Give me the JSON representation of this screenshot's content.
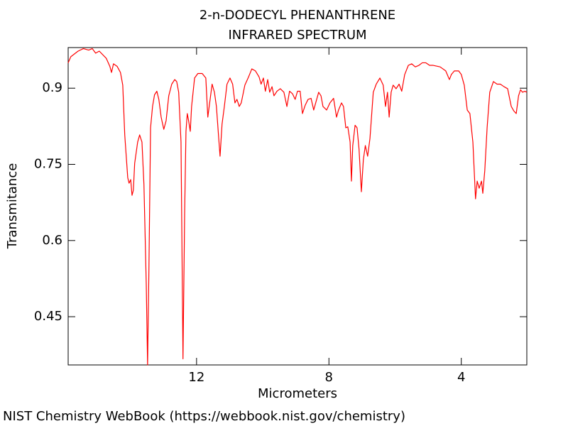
{
  "chart_data": {
    "type": "line",
    "title": "2-n-DODECYL PHENANTHRENE",
    "subtitle": "INFRARED SPECTRUM",
    "x_label": "Micrometers",
    "y_label": "Transmitance",
    "source": "NIST Chemistry WebBook (https://webbook.nist.gov/chemistry)",
    "xlim": [
      15.88,
      2.02
    ],
    "ylim": [
      0.355,
      0.98
    ],
    "xticks": [
      12,
      8,
      4
    ],
    "yticks": [
      0.9,
      0.75,
      0.6,
      0.45
    ],
    "grid": false,
    "series": [
      {
        "name": "2-n-Dodecyl phenanthrene",
        "color": "#ff0000",
        "x": [
          15.88,
          15.8,
          15.58,
          15.42,
          15.26,
          15.15,
          15.05,
          14.94,
          14.73,
          14.62,
          14.57,
          14.51,
          14.4,
          14.3,
          14.23,
          14.17,
          14.08,
          14.04,
          13.99,
          13.95,
          13.91,
          13.87,
          13.78,
          13.72,
          13.65,
          13.59,
          13.52,
          13.48,
          13.44,
          13.39,
          13.33,
          13.27,
          13.2,
          13.14,
          13.07,
          12.99,
          12.92,
          12.84,
          12.75,
          12.66,
          12.6,
          12.54,
          12.47,
          12.41,
          12.36,
          12.32,
          12.28,
          12.24,
          12.19,
          12.15,
          12.06,
          11.96,
          11.83,
          11.72,
          11.66,
          11.59,
          11.53,
          11.46,
          11.4,
          11.33,
          11.29,
          11.23,
          11.16,
          11.08,
          10.99,
          10.91,
          10.84,
          10.78,
          10.71,
          10.65,
          10.54,
          10.43,
          10.33,
          10.22,
          10.11,
          10.05,
          9.98,
          9.92,
          9.85,
          9.79,
          9.72,
          9.66,
          9.57,
          9.47,
          9.36,
          9.27,
          9.19,
          9.1,
          9.02,
          8.95,
          8.87,
          8.8,
          8.72,
          8.63,
          8.54,
          8.46,
          8.37,
          8.31,
          8.24,
          8.18,
          8.07,
          7.97,
          7.86,
          7.77,
          7.71,
          7.62,
          7.56,
          7.49,
          7.43,
          7.36,
          7.32,
          7.28,
          7.21,
          7.15,
          7.09,
          7.02,
          6.96,
          6.9,
          6.83,
          6.76,
          6.66,
          6.57,
          6.46,
          6.36,
          6.29,
          6.23,
          6.18,
          6.12,
          6.06,
          5.97,
          5.88,
          5.8,
          5.71,
          5.6,
          5.5,
          5.39,
          5.28,
          5.18,
          5.07,
          4.96,
          4.85,
          4.64,
          4.47,
          4.36,
          4.3,
          4.21,
          4.08,
          4.0,
          3.91,
          3.82,
          3.74,
          3.65,
          3.61,
          3.57,
          3.52,
          3.46,
          3.39,
          3.35,
          3.29,
          3.22,
          3.14,
          3.03,
          2.92,
          2.82,
          2.71,
          2.6,
          2.49,
          2.41,
          2.34,
          2.27,
          2.21,
          2.15,
          2.08,
          2.02
        ],
        "values": [
          0.95,
          0.962,
          0.973,
          0.978,
          0.975,
          0.978,
          0.969,
          0.973,
          0.959,
          0.943,
          0.931,
          0.948,
          0.943,
          0.931,
          0.906,
          0.808,
          0.724,
          0.713,
          0.72,
          0.689,
          0.699,
          0.752,
          0.794,
          0.808,
          0.794,
          0.71,
          0.514,
          0.355,
          0.542,
          0.822,
          0.864,
          0.887,
          0.894,
          0.878,
          0.843,
          0.819,
          0.836,
          0.885,
          0.908,
          0.917,
          0.913,
          0.892,
          0.794,
          0.367,
          0.654,
          0.815,
          0.85,
          0.836,
          0.815,
          0.864,
          0.92,
          0.929,
          0.929,
          0.92,
          0.843,
          0.878,
          0.908,
          0.892,
          0.864,
          0.801,
          0.766,
          0.829,
          0.864,
          0.908,
          0.92,
          0.908,
          0.871,
          0.878,
          0.864,
          0.871,
          0.906,
          0.922,
          0.938,
          0.934,
          0.922,
          0.908,
          0.92,
          0.894,
          0.917,
          0.892,
          0.903,
          0.885,
          0.894,
          0.899,
          0.892,
          0.864,
          0.894,
          0.889,
          0.878,
          0.894,
          0.894,
          0.85,
          0.866,
          0.878,
          0.88,
          0.857,
          0.878,
          0.892,
          0.885,
          0.864,
          0.857,
          0.871,
          0.88,
          0.843,
          0.857,
          0.871,
          0.864,
          0.822,
          0.824,
          0.794,
          0.717,
          0.787,
          0.827,
          0.822,
          0.78,
          0.696,
          0.759,
          0.787,
          0.766,
          0.801,
          0.892,
          0.908,
          0.92,
          0.906,
          0.864,
          0.892,
          0.843,
          0.892,
          0.906,
          0.899,
          0.908,
          0.894,
          0.927,
          0.945,
          0.948,
          0.942,
          0.945,
          0.95,
          0.95,
          0.945,
          0.945,
          0.942,
          0.934,
          0.917,
          0.927,
          0.934,
          0.934,
          0.927,
          0.906,
          0.857,
          0.85,
          0.794,
          0.738,
          0.682,
          0.717,
          0.703,
          0.717,
          0.693,
          0.738,
          0.822,
          0.892,
          0.913,
          0.908,
          0.908,
          0.903,
          0.899,
          0.864,
          0.855,
          0.85,
          0.885,
          0.897,
          0.892,
          0.894,
          0.892
        ]
      }
    ]
  }
}
